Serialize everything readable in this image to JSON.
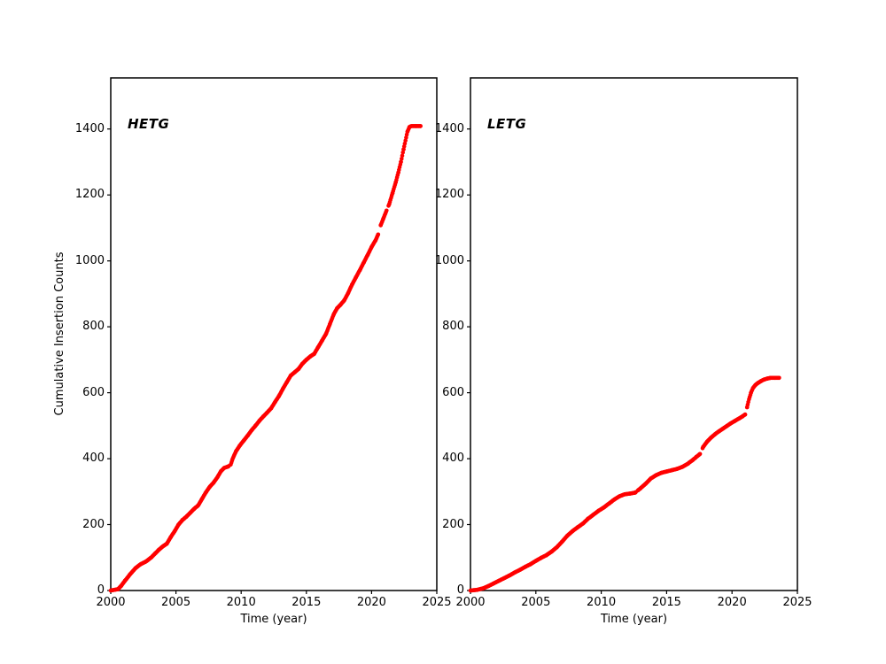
{
  "figure": {
    "background": "#ffffff"
  },
  "chart_data": [
    {
      "id": "hetg",
      "type": "scatter",
      "label": "HETG",
      "xlabel": "Time (year)",
      "ylabel": "Cumulative Insertion Counts",
      "xlim": [
        2000,
        2025
      ],
      "ylim": [
        0,
        1555
      ],
      "xticks": [
        2000,
        2005,
        2010,
        2015,
        2020,
        2025
      ],
      "yticks": [
        0,
        200,
        400,
        600,
        800,
        1000,
        1200,
        1400
      ],
      "marker_color": "#ff0000",
      "marker": "dot",
      "legend": "none",
      "grid": false,
      "final_value": 1409,
      "final_year": 2023.75,
      "points": [
        [
          2000.0,
          0
        ],
        [
          2000.55,
          4
        ],
        [
          2000.8,
          14
        ],
        [
          2001.1,
          30
        ],
        [
          2001.5,
          50
        ],
        [
          2001.9,
          68
        ],
        [
          2002.3,
          80
        ],
        [
          2002.7,
          88
        ],
        [
          2003.1,
          100
        ],
        [
          2003.4,
          112
        ],
        [
          2003.7,
          124
        ],
        [
          2004.0,
          134
        ],
        [
          2004.3,
          142
        ],
        [
          2004.6,
          162
        ],
        [
          2004.9,
          180
        ],
        [
          2005.2,
          200
        ],
        [
          2005.5,
          214
        ],
        [
          2005.8,
          224
        ],
        [
          2006.1,
          236
        ],
        [
          2006.4,
          248
        ],
        [
          2006.7,
          258
        ],
        [
          2007.0,
          278
        ],
        [
          2007.3,
          298
        ],
        [
          2007.6,
          315
        ],
        [
          2007.9,
          328
        ],
        [
          2008.2,
          345
        ],
        [
          2008.45,
          362
        ],
        [
          2008.7,
          372
        ],
        [
          2009.0,
          376
        ],
        [
          2009.2,
          382
        ],
        [
          2009.35,
          400
        ],
        [
          2009.6,
          422
        ],
        [
          2009.9,
          440
        ],
        [
          2010.2,
          455
        ],
        [
          2010.5,
          470
        ],
        [
          2010.8,
          486
        ],
        [
          2011.1,
          500
        ],
        [
          2011.4,
          515
        ],
        [
          2011.7,
          528
        ],
        [
          2012.0,
          540
        ],
        [
          2012.3,
          553
        ],
        [
          2012.6,
          572
        ],
        [
          2012.9,
          590
        ],
        [
          2013.2,
          612
        ],
        [
          2013.5,
          632
        ],
        [
          2013.8,
          652
        ],
        [
          2014.1,
          662
        ],
        [
          2014.4,
          672
        ],
        [
          2014.7,
          688
        ],
        [
          2015.0,
          700
        ],
        [
          2015.3,
          710
        ],
        [
          2015.6,
          718
        ],
        [
          2015.9,
          738
        ],
        [
          2016.2,
          758
        ],
        [
          2016.5,
          778
        ],
        [
          2016.8,
          808
        ],
        [
          2017.1,
          838
        ],
        [
          2017.35,
          856
        ],
        [
          2017.6,
          866
        ],
        [
          2017.9,
          880
        ],
        [
          2018.2,
          902
        ],
        [
          2018.5,
          928
        ],
        [
          2018.8,
          950
        ],
        [
          2019.1,
          972
        ],
        [
          2019.4,
          995
        ],
        [
          2019.7,
          1018
        ],
        [
          2020.0,
          1042
        ],
        [
          2020.3,
          1062
        ],
        [
          2020.5,
          1080
        ],
        [
          2020.7,
          1108
        ],
        [
          2020.9,
          1128
        ],
        [
          2021.1,
          1148
        ],
        [
          2021.35,
          1172
        ],
        [
          2021.6,
          1205
        ],
        [
          2021.85,
          1238
        ],
        [
          2022.05,
          1268
        ],
        [
          2022.25,
          1300
        ],
        [
          2022.45,
          1338
        ],
        [
          2022.6,
          1365
        ],
        [
          2022.75,
          1392
        ],
        [
          2022.9,
          1406
        ],
        [
          2023.05,
          1409
        ],
        [
          2023.4,
          1409
        ],
        [
          2023.75,
          1409
        ]
      ],
      "gaps": [
        [
          2009.05,
          2009.2
        ],
        [
          2020.52,
          2020.66
        ],
        [
          2021.17,
          2021.28
        ]
      ]
    },
    {
      "id": "letg",
      "type": "scatter",
      "label": "LETG",
      "xlabel": "Time (year)",
      "ylabel": "",
      "xlim": [
        2000,
        2025
      ],
      "ylim": [
        0,
        1555
      ],
      "xticks": [
        2000,
        2005,
        2010,
        2015,
        2020,
        2025
      ],
      "yticks": [
        0,
        200,
        400,
        600,
        800,
        1000,
        1200,
        1400
      ],
      "marker_color": "#ff0000",
      "marker": "dot",
      "legend": "none",
      "grid": false,
      "final_value": 645,
      "final_year": 2023.6,
      "points": [
        [
          2000.0,
          0
        ],
        [
          2000.5,
          2
        ],
        [
          2001.0,
          7
        ],
        [
          2001.4,
          14
        ],
        [
          2001.8,
          22
        ],
        [
          2002.2,
          30
        ],
        [
          2002.6,
          38
        ],
        [
          2003.0,
          46
        ],
        [
          2003.4,
          55
        ],
        [
          2003.8,
          63
        ],
        [
          2004.2,
          72
        ],
        [
          2004.6,
          80
        ],
        [
          2005.0,
          90
        ],
        [
          2005.4,
          99
        ],
        [
          2005.8,
          107
        ],
        [
          2006.2,
          118
        ],
        [
          2006.6,
          131
        ],
        [
          2007.0,
          148
        ],
        [
          2007.4,
          166
        ],
        [
          2007.8,
          180
        ],
        [
          2008.2,
          192
        ],
        [
          2008.6,
          203
        ],
        [
          2009.0,
          218
        ],
        [
          2009.4,
          230
        ],
        [
          2009.8,
          242
        ],
        [
          2010.2,
          252
        ],
        [
          2010.6,
          264
        ],
        [
          2011.0,
          276
        ],
        [
          2011.4,
          286
        ],
        [
          2011.8,
          292
        ],
        [
          2012.2,
          294
        ],
        [
          2012.6,
          297
        ],
        [
          2013.0,
          310
        ],
        [
          2013.4,
          324
        ],
        [
          2013.8,
          340
        ],
        [
          2014.2,
          350
        ],
        [
          2014.6,
          357
        ],
        [
          2015.0,
          361
        ],
        [
          2015.4,
          365
        ],
        [
          2015.8,
          369
        ],
        [
          2016.2,
          375
        ],
        [
          2016.6,
          384
        ],
        [
          2017.0,
          396
        ],
        [
          2017.3,
          406
        ],
        [
          2017.55,
          414
        ],
        [
          2017.8,
          436
        ],
        [
          2018.1,
          452
        ],
        [
          2018.4,
          464
        ],
        [
          2018.7,
          474
        ],
        [
          2019.0,
          483
        ],
        [
          2019.3,
          491
        ],
        [
          2019.6,
          499
        ],
        [
          2019.9,
          507
        ],
        [
          2020.2,
          514
        ],
        [
          2020.5,
          521
        ],
        [
          2020.8,
          528
        ],
        [
          2021.0,
          534
        ],
        [
          2021.15,
          556
        ],
        [
          2021.3,
          580
        ],
        [
          2021.45,
          600
        ],
        [
          2021.6,
          614
        ],
        [
          2021.8,
          624
        ],
        [
          2022.0,
          630
        ],
        [
          2022.2,
          635
        ],
        [
          2022.45,
          640
        ],
        [
          2022.7,
          643
        ],
        [
          2022.95,
          645
        ],
        [
          2023.3,
          645
        ],
        [
          2023.6,
          645
        ]
      ],
      "gaps": [
        [
          2012.65,
          2012.75
        ],
        [
          2017.58,
          2017.72
        ],
        [
          2021.03,
          2021.13
        ]
      ]
    }
  ]
}
